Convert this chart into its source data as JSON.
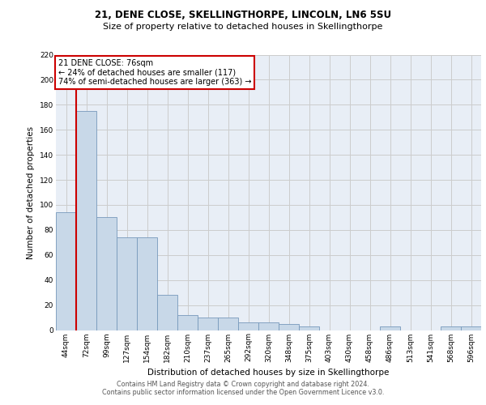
{
  "title1": "21, DENE CLOSE, SKELLINGTHORPE, LINCOLN, LN6 5SU",
  "title2": "Size of property relative to detached houses in Skellingthorpe",
  "xlabel": "Distribution of detached houses by size in Skellingthorpe",
  "ylabel": "Number of detached properties",
  "footer1": "Contains HM Land Registry data © Crown copyright and database right 2024.",
  "footer2": "Contains public sector information licensed under the Open Government Licence v3.0.",
  "annotation_title": "21 DENE CLOSE: 76sqm",
  "annotation_line1": "← 24% of detached houses are smaller (117)",
  "annotation_line2": "74% of semi-detached houses are larger (363) →",
  "bar_categories": [
    "44sqm",
    "72sqm",
    "99sqm",
    "127sqm",
    "154sqm",
    "182sqm",
    "210sqm",
    "237sqm",
    "265sqm",
    "292sqm",
    "320sqm",
    "348sqm",
    "375sqm",
    "403sqm",
    "430sqm",
    "458sqm",
    "486sqm",
    "513sqm",
    "541sqm",
    "568sqm",
    "596sqm"
  ],
  "bar_values": [
    94,
    175,
    90,
    74,
    74,
    28,
    12,
    10,
    10,
    6,
    6,
    5,
    3,
    0,
    0,
    0,
    3,
    0,
    0,
    3,
    3
  ],
  "bar_color": "#c8d8e8",
  "bar_edge_color": "#7799bb",
  "bar_width": 1.0,
  "vline_color": "#cc0000",
  "annotation_box_color": "#ffffff",
  "annotation_box_edge": "#cc0000",
  "grid_color": "#cccccc",
  "background_color": "#e8eef6",
  "ylim": [
    0,
    220
  ],
  "yticks": [
    0,
    20,
    40,
    60,
    80,
    100,
    120,
    140,
    160,
    180,
    200,
    220
  ],
  "title1_fontsize": 8.5,
  "title2_fontsize": 8.0,
  "ylabel_fontsize": 7.5,
  "xlabel_fontsize": 7.5,
  "tick_fontsize": 6.5,
  "footer_fontsize": 5.8,
  "annotation_fontsize": 7.0
}
